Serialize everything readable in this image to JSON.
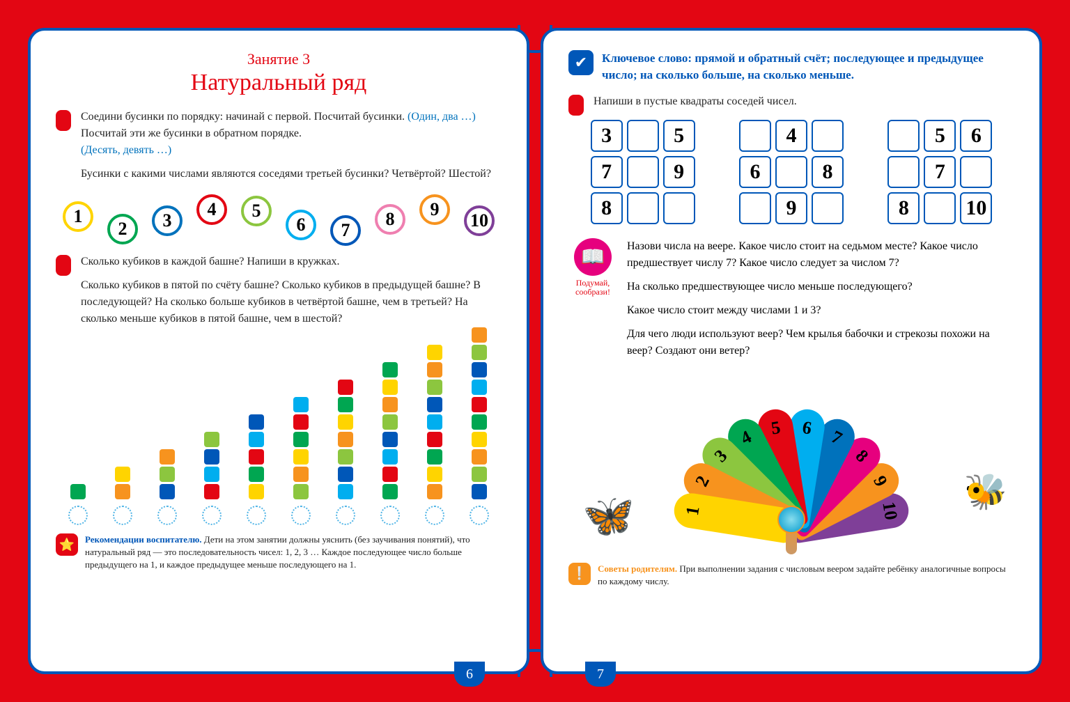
{
  "colors": {
    "bg": "#e30613",
    "border": "#0057b8",
    "accent_blue": "#0072bc",
    "accent_pink": "#e6007e",
    "accent_orange": "#f7931e"
  },
  "left": {
    "subtitle": "Занятие 3",
    "title": "Натуральный ряд",
    "task1_line1": "Соедини бусинки по порядку: начинай с первой. Посчитай бусинки.",
    "task1_blue1": "(Один, два …) ",
    "task1_line1b": "Посчитай эти же бусинки в обратном порядке.",
    "task1_blue2": "(Десять, девять …)",
    "task1_q": "Бусинки с какими числами являются соседями третьей бусинки? Четвёртой? Шестой?",
    "beads": [
      {
        "n": "1",
        "c": "#ffd400",
        "y": 0
      },
      {
        "n": "2",
        "c": "#00a651",
        "y": 18
      },
      {
        "n": "3",
        "c": "#0072bc",
        "y": 6
      },
      {
        "n": "4",
        "c": "#e30613",
        "y": -10
      },
      {
        "n": "5",
        "c": "#8cc63f",
        "y": -8
      },
      {
        "n": "6",
        "c": "#00aeef",
        "y": 12
      },
      {
        "n": "7",
        "c": "#0057b8",
        "y": 20
      },
      {
        "n": "8",
        "c": "#ef7fb0",
        "y": 4
      },
      {
        "n": "9",
        "c": "#f7931e",
        "y": -10
      },
      {
        "n": "10",
        "c": "#7f3f98",
        "y": 6
      }
    ],
    "task2_line1": "Сколько кубиков в каждой башне? Напиши в кружках.",
    "task2_q": "Сколько кубиков в пятой по счёту башне? Сколько кубиков в предыдущей башне? В последующей? На сколько больше кубиков в четвёртой башне, чем в третьей? На сколько меньше кубиков в пятой башне, чем в шестой?",
    "cube_colors": [
      "#00aeef",
      "#00a651",
      "#f7931e",
      "#0057b8",
      "#e30613",
      "#ffd400",
      "#8cc63f"
    ],
    "towers": [
      1,
      2,
      3,
      4,
      5,
      6,
      7,
      8,
      9,
      10
    ],
    "note_label": "Рекомендации воспитателю.",
    "note_text": " Дети на этом занятии должны уяснить (без заучивания понятий), что натуральный ряд — это последовательность чисел: 1, 2, 3 … Каждое последующее число больше предыдущего на 1, и каждое предыдущее меньше последующего на 1.",
    "page_num": "6"
  },
  "right": {
    "key_label": "Ключевое слово: ",
    "key_text": "прямой и обратный счёт; последующее и предыдущее число; на сколько больше, на сколько меньше.",
    "task3": "Напиши в пустые квадраты соседей чисел.",
    "grids": [
      [
        "3",
        "",
        "5",
        "7",
        "",
        "9",
        "8",
        "",
        ""
      ],
      [
        "",
        "4",
        "",
        "6",
        "",
        "8",
        "",
        "9",
        ""
      ],
      [
        "",
        "5",
        "6",
        "",
        "7",
        "",
        "8",
        "",
        "10"
      ]
    ],
    "think_label": "Подумай, сообрази!",
    "think_p1": "Назови числа на веере. Какое число стоит на седьмом месте? Какое число предшествует числу 7? Какое число следует за числом 7?",
    "think_p2": "На сколько предшествующее число меньше последующего?",
    "think_p3": "Какое число стоит между числами 1 и 3?",
    "think_p4": "Для чего люди используют веер? Чем крылья бабочки и стрекозы похожи на веер? Создают они ветер?",
    "fan": {
      "petals": [
        {
          "n": "1",
          "c": "#ffd400",
          "rot": -81
        },
        {
          "n": "2",
          "c": "#f7931e",
          "rot": -63
        },
        {
          "n": "3",
          "c": "#8cc63f",
          "rot": -45
        },
        {
          "n": "4",
          "c": "#00a651",
          "rot": -27
        },
        {
          "n": "5",
          "c": "#e30613",
          "rot": -9
        },
        {
          "n": "6",
          "c": "#00aeef",
          "rot": 9
        },
        {
          "n": "7",
          "c": "#0072bc",
          "rot": 27
        },
        {
          "n": "8",
          "c": "#e6007e",
          "rot": 45
        },
        {
          "n": "9",
          "c": "#f7931e",
          "rot": 63
        },
        {
          "n": "10",
          "c": "#7f3f98",
          "rot": 81
        }
      ]
    },
    "note_label": "Советы родителям.",
    "note_text": " При выполнении задания с числовым веером задайте ребёнку аналогичные вопросы по каждому числу.",
    "page_num": "7"
  }
}
